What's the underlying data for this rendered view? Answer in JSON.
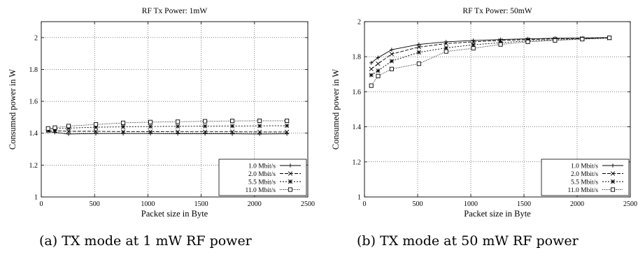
{
  "captions": {
    "a": "(a) TX mode at 1 mW RF power",
    "b": "(b) TX mode at 50 mW RF power"
  },
  "chart_data": [
    {
      "type": "line",
      "title": "RF Tx Power: 1mW",
      "xlabel": "Packet size in Byte",
      "ylabel": "Consumed power in W",
      "xlim": [
        0,
        2500
      ],
      "ylim": [
        1,
        2.1
      ],
      "xticks": [
        0,
        500,
        1000,
        1500,
        2000,
        2500
      ],
      "yticks": [
        1,
        1.2,
        1.4,
        1.6,
        1.8,
        2
      ],
      "grid": true,
      "legend_position": "bottom-right",
      "series": [
        {
          "name": "1.0 Mbit/s",
          "marker": "plus",
          "dash": "",
          "x": [
            64,
            128,
            256,
            512,
            768,
            1024,
            1280,
            1536,
            1792,
            2048,
            2304
          ],
          "y": [
            1.41,
            1.405,
            1.395,
            1.398,
            1.398,
            1.398,
            1.397,
            1.397,
            1.396,
            1.395,
            1.396
          ]
        },
        {
          "name": "2.0 Mbit/s",
          "marker": "x",
          "dash": "5,2",
          "x": [
            64,
            128,
            256,
            512,
            768,
            1024,
            1280,
            1536,
            1792,
            2048,
            2304
          ],
          "y": [
            1.415,
            1.415,
            1.412,
            1.412,
            1.41,
            1.41,
            1.409,
            1.409,
            1.409,
            1.408,
            1.408
          ]
        },
        {
          "name": "5.5 Mbit/s",
          "marker": "asterisk",
          "dash": "2,2",
          "x": [
            64,
            128,
            256,
            512,
            768,
            1024,
            1280,
            1536,
            1792,
            2048,
            2304
          ],
          "y": [
            1.425,
            1.428,
            1.432,
            1.438,
            1.44,
            1.442,
            1.443,
            1.444,
            1.445,
            1.446,
            1.447
          ]
        },
        {
          "name": "11.0 Mbit/s",
          "marker": "square",
          "dash": "1,1.5",
          "x": [
            64,
            128,
            256,
            512,
            768,
            1024,
            1280,
            1536,
            1792,
            2048,
            2304
          ],
          "y": [
            1.43,
            1.435,
            1.445,
            1.455,
            1.465,
            1.47,
            1.472,
            1.475,
            1.477,
            1.478,
            1.478
          ]
        }
      ]
    },
    {
      "type": "line",
      "title": "RF Tx Power: 50mW",
      "xlabel": "Packet size in Byte",
      "ylabel": "Consumed power in W",
      "xlim": [
        0,
        2500
      ],
      "ylim": [
        1,
        2
      ],
      "xticks": [
        0,
        500,
        1000,
        1500,
        2000,
        2500
      ],
      "yticks": [
        1,
        1.2,
        1.4,
        1.6,
        1.8,
        2
      ],
      "grid": true,
      "legend_position": "bottom-right",
      "series": [
        {
          "name": "1.0 Mbit/s",
          "marker": "plus",
          "dash": "",
          "x": [
            64,
            128,
            256,
            512,
            768,
            1024,
            1280,
            1536,
            1792,
            2048,
            2304
          ],
          "y": [
            1.765,
            1.795,
            1.84,
            1.87,
            1.885,
            1.893,
            1.898,
            1.902,
            1.905,
            1.907,
            1.909
          ]
        },
        {
          "name": "2.0 Mbit/s",
          "marker": "x",
          "dash": "5,2",
          "x": [
            64,
            128,
            256,
            512,
            768,
            1024,
            1280,
            1536,
            1792,
            2048,
            2304
          ],
          "y": [
            1.73,
            1.76,
            1.815,
            1.855,
            1.875,
            1.885,
            1.893,
            1.898,
            1.902,
            1.905,
            1.908
          ]
        },
        {
          "name": "5.5 Mbit/s",
          "marker": "asterisk",
          "dash": "2,2",
          "x": [
            64,
            128,
            256,
            512,
            768,
            1024,
            1280,
            1536,
            1792,
            2048,
            2304
          ],
          "y": [
            1.695,
            1.72,
            1.775,
            1.825,
            1.85,
            1.868,
            1.88,
            1.89,
            1.896,
            1.901,
            1.906
          ]
        },
        {
          "name": "11.0 Mbit/s",
          "marker": "square",
          "dash": "1,1.5",
          "x": [
            64,
            128,
            256,
            512,
            768,
            1024,
            1280,
            1536,
            1792,
            2048,
            2304
          ],
          "y": [
            1.635,
            1.69,
            1.73,
            1.76,
            1.83,
            1.848,
            1.87,
            1.885,
            1.893,
            1.9,
            1.908
          ]
        }
      ]
    }
  ]
}
